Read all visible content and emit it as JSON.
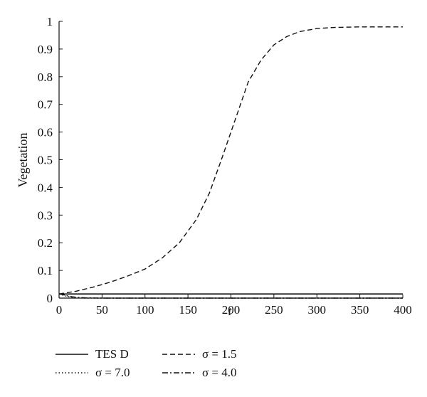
{
  "chart_data": {
    "type": "line",
    "xlabel": "t",
    "ylabel": "Vegetation",
    "xlim": [
      0,
      400
    ],
    "ylim": [
      0,
      1
    ],
    "xticks": [
      "0",
      "50",
      "100",
      "150",
      "200",
      "250",
      "300",
      "350",
      "400"
    ],
    "yticks": [
      "0",
      "0.1",
      "0.2",
      "0.3",
      "0.4",
      "0.5",
      "0.6",
      "0.7",
      "0.8",
      "0.9",
      "1"
    ],
    "grid": false,
    "legend_position": "bottom",
    "series": [
      {
        "name": "TES D",
        "style": "solid",
        "x": [
          0,
          400
        ],
        "y": [
          0.015,
          0.015
        ]
      },
      {
        "name": "σ = 1.5",
        "style": "dashed",
        "x": [
          0,
          20,
          40,
          60,
          80,
          100,
          120,
          140,
          160,
          175,
          190,
          200,
          210,
          220,
          235,
          250,
          265,
          280,
          300,
          320,
          350,
          400
        ],
        "y": [
          0.015,
          0.025,
          0.04,
          0.058,
          0.08,
          0.105,
          0.145,
          0.2,
          0.285,
          0.38,
          0.51,
          0.6,
          0.69,
          0.78,
          0.86,
          0.915,
          0.945,
          0.963,
          0.974,
          0.978,
          0.98,
          0.98
        ]
      },
      {
        "name": "σ = 7.0",
        "style": "dotted",
        "x": [
          0,
          5,
          10,
          15,
          20,
          30,
          50,
          100,
          200,
          300,
          400
        ],
        "y": [
          0.015,
          0.01,
          0.006,
          0.003,
          0.001,
          0.0,
          0.0,
          0.0,
          0.0,
          0.0,
          0.0
        ]
      },
      {
        "name": "σ = 4.0",
        "style": "dashdot",
        "x": [
          0,
          5,
          10,
          15,
          20,
          30,
          50,
          100,
          200,
          300,
          400
        ],
        "y": [
          0.015,
          0.012,
          0.008,
          0.005,
          0.003,
          0.001,
          0.0,
          0.0,
          0.0,
          0.0,
          0.0
        ]
      }
    ]
  }
}
